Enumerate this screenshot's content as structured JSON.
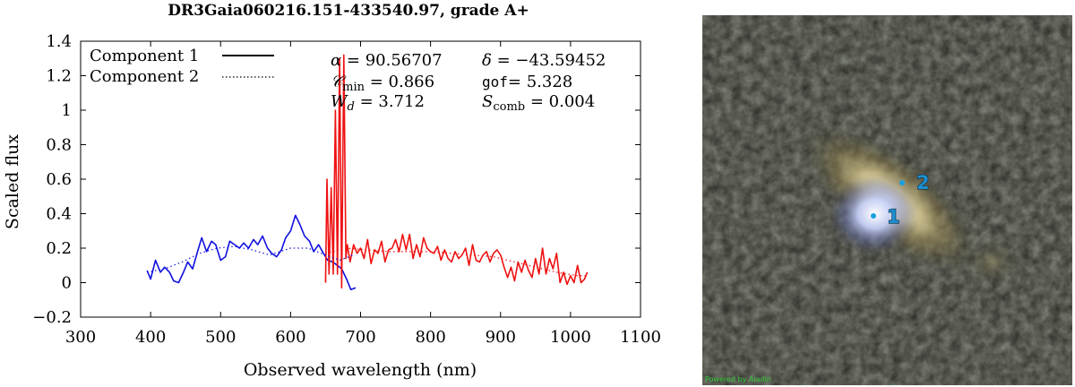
{
  "chart_data": {
    "type": "line",
    "title": "DR3Gaia060216.151-433540.97, grade A+",
    "xlabel": "Observed wavelength (nm)",
    "ylabel": "Scaled flux",
    "xlim": [
      300,
      1100
    ],
    "ylim": [
      -0.2,
      1.4
    ],
    "xticks": [
      "300",
      "400",
      "500",
      "600",
      "700",
      "800",
      "900",
      "1000",
      "1100"
    ],
    "yticks": [
      "−0.2",
      "0",
      "0.2",
      "0.4",
      "0.6",
      "0.8",
      "1",
      "1.2",
      "1.4"
    ],
    "legend": {
      "position": "top-left",
      "entries": [
        {
          "label": "Component 1",
          "style": "solid"
        },
        {
          "label": "Component 2",
          "style": "dotted"
        }
      ]
    },
    "annotations": {
      "alpha": {
        "sym": "α",
        "value": "90.56707"
      },
      "delta": {
        "sym": "δ",
        "value": "−43.59452"
      },
      "cmin": {
        "sym": "𝒞",
        "sub": "min",
        "value": "0.866"
      },
      "gof": {
        "sym": "gof",
        "value": "5.328"
      },
      "wd": {
        "sym": "W",
        "sub": "d",
        "value": "3.712"
      },
      "scomb": {
        "sym": "S",
        "sub": "comb",
        "value": "0.004"
      }
    },
    "series": [
      {
        "color": "#1010e0",
        "style": "solid",
        "x": [
          395,
          400,
          407,
          414,
          420,
          427,
          433,
          440,
          447,
          453,
          460,
          467,
          473,
          480,
          487,
          493,
          500,
          507,
          513,
          520,
          527,
          533,
          540,
          547,
          553,
          560,
          567,
          573,
          580,
          587,
          593,
          600,
          607,
          613,
          620,
          627,
          633,
          640,
          647,
          653,
          660,
          667,
          673,
          680,
          686,
          693
        ],
        "y": [
          0.07,
          0.02,
          0.13,
          0.06,
          0.09,
          0.06,
          0.01,
          0,
          0.06,
          0.12,
          0.08,
          0.18,
          0.26,
          0.18,
          0.24,
          0.22,
          0.13,
          0.15,
          0.24,
          0.22,
          0.2,
          0.23,
          0.2,
          0.25,
          0.22,
          0.27,
          0.2,
          0.17,
          0.15,
          0.19,
          0.26,
          0.3,
          0.39,
          0.34,
          0.27,
          0.24,
          0.18,
          0.22,
          0.17,
          0.13,
          0.12,
          0.1,
          0.08,
          0.02,
          -0.04,
          -0.03
        ]
      },
      {
        "color": "#ee1111",
        "style": "solid",
        "x": [
          650,
          652,
          655,
          658,
          661,
          664,
          667,
          670,
          673,
          676,
          679,
          681,
          685,
          690,
          695,
          700,
          705,
          710,
          715,
          720,
          725,
          730,
          735,
          740,
          745,
          750,
          755,
          760,
          765,
          770,
          775,
          780,
          785,
          790,
          795,
          800,
          805,
          810,
          815,
          820,
          825,
          830,
          835,
          840,
          845,
          850,
          855,
          860,
          865,
          870,
          875,
          880,
          885,
          890,
          895,
          900,
          905,
          910,
          915,
          920,
          925,
          930,
          935,
          940,
          945,
          950,
          955,
          960,
          965,
          970,
          975,
          980,
          985,
          990,
          995,
          1000,
          1005,
          1010,
          1015,
          1020,
          1024
        ],
        "y": [
          0.0,
          0.6,
          0.05,
          0.55,
          0.05,
          1.0,
          0.05,
          1.3,
          -0.03,
          1.32,
          0.14,
          0.22,
          0.12,
          0.22,
          0.17,
          0.2,
          0.14,
          0.25,
          0.11,
          0.19,
          0.17,
          0.24,
          0.12,
          0.19,
          0.2,
          0.25,
          0.18,
          0.28,
          0.19,
          0.28,
          0.14,
          0.22,
          0.15,
          0.26,
          0.2,
          0.18,
          0.17,
          0.21,
          0.13,
          0.19,
          0.14,
          0.12,
          0.18,
          0.14,
          0.16,
          0.2,
          0.1,
          0.22,
          0.13,
          0.12,
          0.16,
          0.18,
          0.12,
          0.17,
          0.19,
          0.16,
          0.09,
          0.03,
          0.09,
          0.01,
          0.12,
          0.06,
          0.13,
          0.07,
          0.03,
          0.14,
          0.05,
          0.2,
          0.05,
          0.14,
          0.08,
          0.17,
          0.0,
          0.06,
          -0.01,
          0.04,
          0.0,
          0.1,
          0.0,
          0.02,
          0.06
        ]
      },
      {
        "color": "#1010e0",
        "style": "dotted",
        "x": [
          395,
          420,
          445,
          470,
          495,
          520,
          545,
          570,
          600,
          625,
          650,
          670,
          690
        ],
        "y": [
          0.06,
          0.08,
          0.12,
          0.17,
          0.2,
          0.21,
          0.19,
          0.16,
          0.2,
          0.2,
          0.16,
          0.13,
          0.16
        ]
      },
      {
        "color": "#ee1111",
        "style": "dotted",
        "x": [
          650,
          680,
          710,
          740,
          770,
          800,
          830,
          860,
          890,
          920,
          950,
          980,
          1010,
          1024
        ],
        "y": [
          0.17,
          0.2,
          0.19,
          0.18,
          0.18,
          0.18,
          0.17,
          0.16,
          0.15,
          0.12,
          0.09,
          0.06,
          0.04,
          0.04
        ]
      }
    ]
  },
  "sky_image": {
    "credit": "Powered by Aladin",
    "markers": [
      {
        "label": "1"
      },
      {
        "label": "2"
      }
    ]
  }
}
